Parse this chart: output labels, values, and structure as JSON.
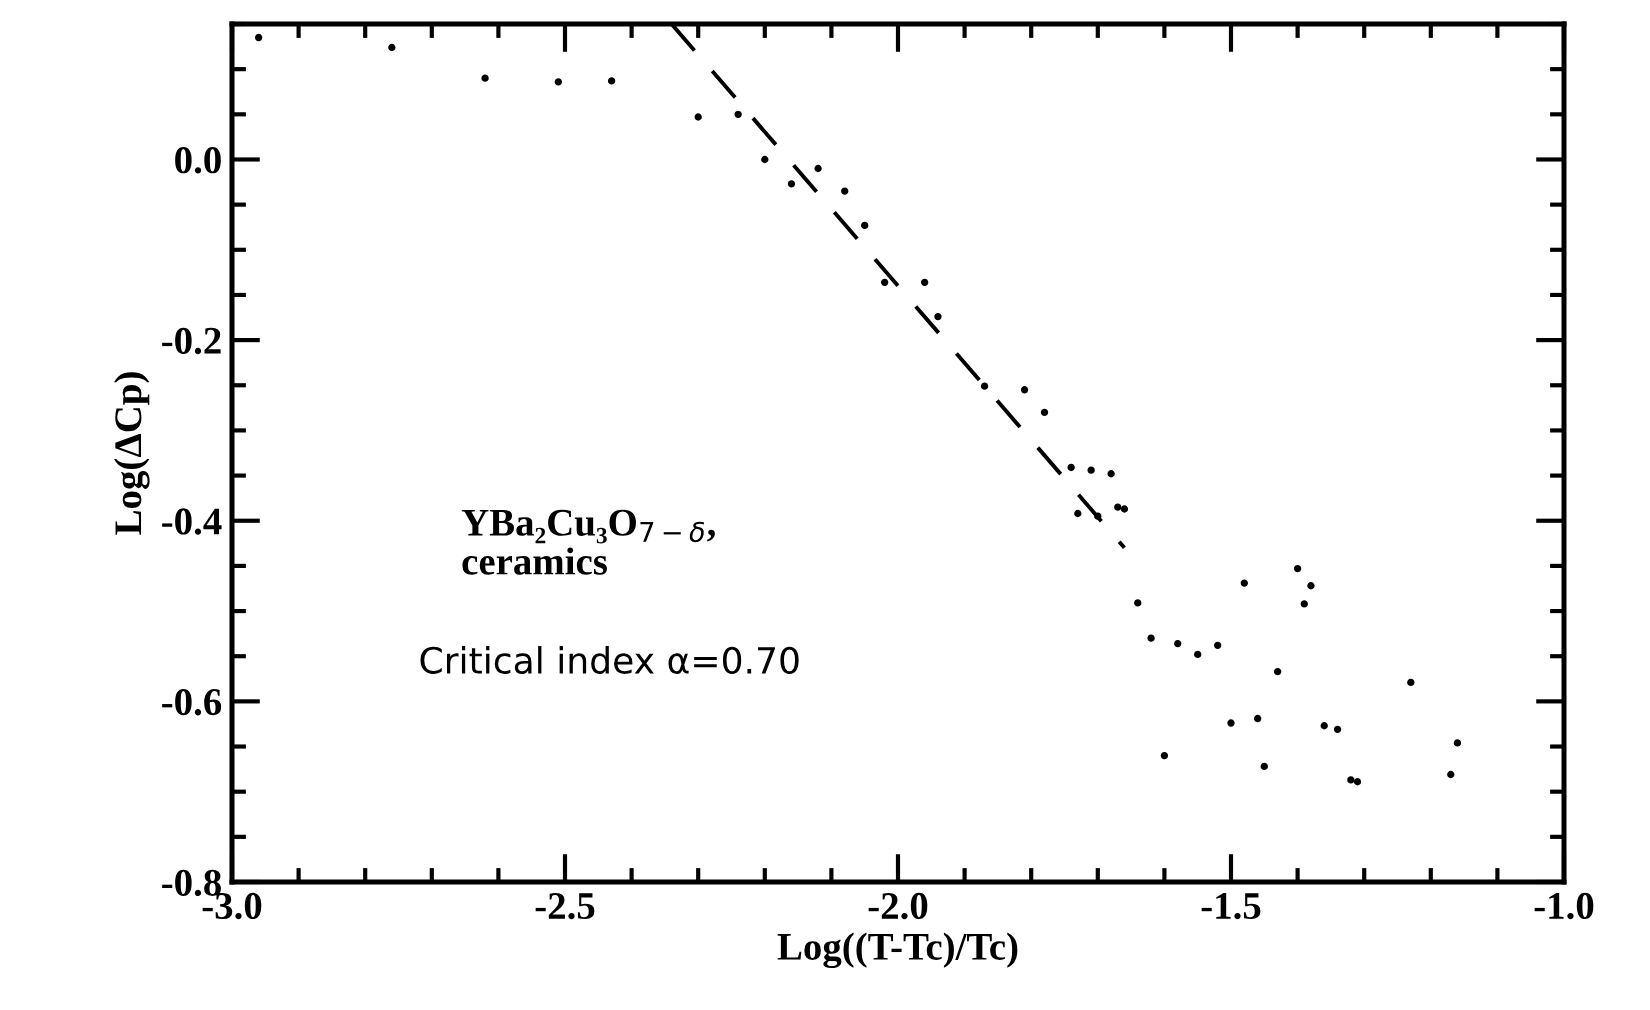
{
  "chart_data": {
    "type": "scatter",
    "xlabel": "Log((T-Tc)/Tc)",
    "ylabel": "Log(ΔCp)",
    "series": [
      {
        "color": "#000000",
        "marker": "circle",
        "x": [
          -2.96,
          -2.76,
          -2.62,
          -2.51,
          -2.43,
          -2.3,
          -2.24,
          -2.2,
          -2.16,
          -2.12,
          -2.08,
          -2.05,
          -2.02,
          -1.96,
          -1.94,
          -1.87,
          -1.81,
          -1.78,
          -1.74,
          -1.71,
          -1.68,
          -1.73,
          -1.7,
          -1.67,
          -1.66,
          -1.64,
          -1.62,
          -1.58,
          -1.55,
          -1.52,
          -1.48,
          -1.4,
          -1.38,
          -1.39,
          -1.43,
          -1.23,
          -1.5,
          -1.46,
          -1.36,
          -1.34,
          -1.6,
          -1.45,
          -1.32,
          -1.31,
          -1.16,
          -1.17
        ],
        "values": [
          0.135,
          0.124,
          0.09,
          0.086,
          0.087,
          0.047,
          0.05,
          0.0,
          -0.027,
          -0.01,
          -0.035,
          -0.073,
          -0.136,
          -0.136,
          -0.174,
          -0.251,
          -0.255,
          -0.28,
          -0.341,
          -0.344,
          -0.348,
          -0.392,
          -0.395,
          -0.385,
          -0.387,
          -0.491,
          -0.53,
          -0.536,
          -0.548,
          -0.538,
          -0.469,
          -0.453,
          -0.472,
          -0.492,
          -0.567,
          -0.579,
          -0.624,
          -0.619,
          -0.627,
          -0.631,
          -0.66,
          -0.672,
          -0.687,
          -0.689,
          -0.646,
          -0.681
        ]
      },
      {
        "type": "line",
        "color": "#000000",
        "line_style": "dashed",
        "marker": "none",
        "x": [
          -2.34,
          -1.66
        ],
        "values": [
          0.15,
          -0.43
        ]
      }
    ],
    "annotations": [
      "YBa₂Cu₃O$_{7−δ}$,",
      "ceramics",
      "Critical index α=0.70"
    ],
    "xlim": [
      -3.0,
      -1.0
    ],
    "ylim": [
      -0.8,
      0.15
    ],
    "xticks": [
      {
        "value": -3,
        "label": "-3.0"
      },
      -2.5,
      {
        "value": -2,
        "label": "-2.0"
      },
      -1.5,
      {
        "value": -1,
        "label": "-1.0"
      }
    ],
    "yticks": [
      -0.8,
      -0.6,
      -0.4,
      -0.2,
      {
        "value": 0,
        "label": "0.0"
      }
    ],
    "grid": false,
    "legend": false
  }
}
